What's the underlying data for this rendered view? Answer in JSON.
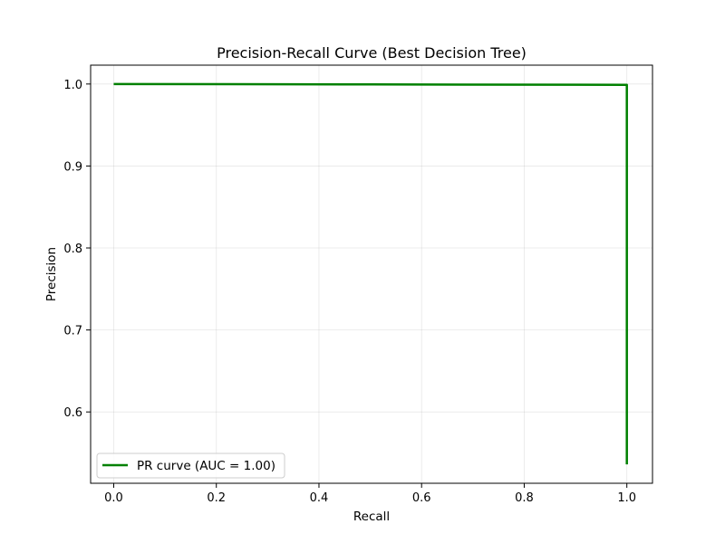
{
  "chart_data": {
    "type": "line",
    "title": "Precision-Recall Curve (Best Decision Tree)",
    "xlabel": "Recall",
    "ylabel": "Precision",
    "xlim": [
      -0.045,
      1.05
    ],
    "ylim": [
      0.513,
      1.023
    ],
    "xticks": [
      0.0,
      0.2,
      0.4,
      0.6,
      0.8,
      1.0
    ],
    "yticks": [
      0.6,
      0.7,
      0.8,
      0.9,
      1.0
    ],
    "grid": true,
    "legend_position": "lower-left",
    "series": [
      {
        "name": "PR curve (AUC = 1.00)",
        "color": "#008000",
        "x": [
          0.0,
          0.5,
          0.998,
          1.0,
          1.0,
          1.0
        ],
        "y": [
          1.0,
          0.9995,
          0.999,
          0.999,
          0.98,
          0.536
        ]
      }
    ]
  }
}
